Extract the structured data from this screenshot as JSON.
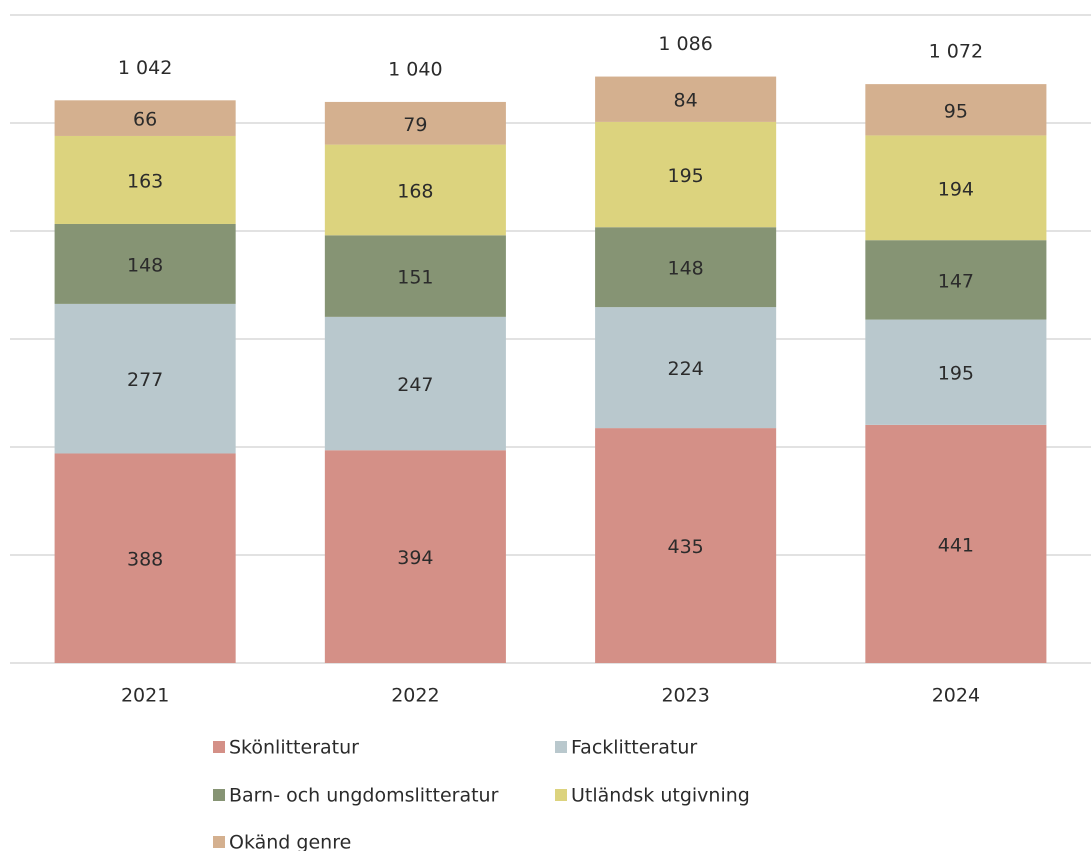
{
  "chart_data": {
    "type": "stacked_bar",
    "categories": [
      "2021",
      "2022",
      "2023",
      "2024"
    ],
    "series": [
      {
        "name": "Skönlitteratur",
        "color": "#d49087",
        "values": [
          388,
          394,
          435,
          441
        ]
      },
      {
        "name": "Facklitteratur",
        "color": "#b9c8cd",
        "values": [
          277,
          247,
          224,
          195
        ]
      },
      {
        "name": "Barn- och ungdomslitteratur",
        "color": "#869474",
        "values": [
          148,
          151,
          148,
          147
        ]
      },
      {
        "name": "Utländsk utgivning",
        "color": "#dcd37e",
        "values": [
          163,
          168,
          195,
          194
        ]
      },
      {
        "name": "Okänd genre",
        "color": "#d4b08f",
        "values": [
          66,
          79,
          84,
          95
        ]
      }
    ],
    "totals": {
      "values": [
        1042,
        1040,
        1086,
        1072
      ],
      "value_labels": [
        "1 042",
        "1 040",
        "1 086",
        "1 072"
      ]
    },
    "ylim": [
      0,
      1200
    ],
    "yticks": [
      0,
      200,
      400,
      600,
      800,
      1000,
      1200
    ],
    "grid": true,
    "legend": "bottom"
  }
}
